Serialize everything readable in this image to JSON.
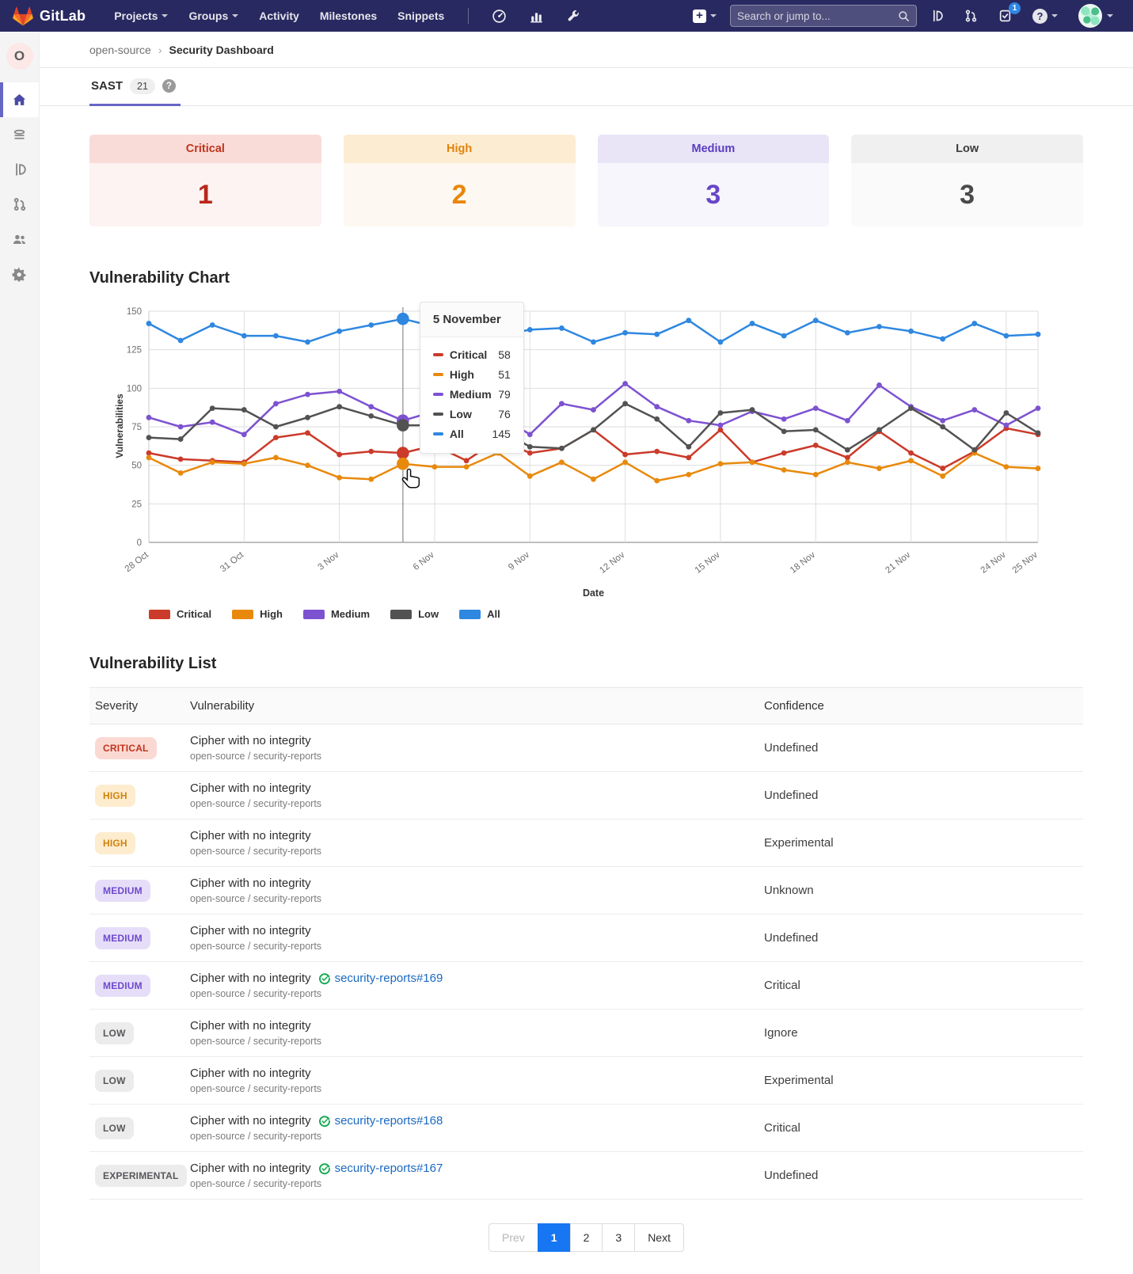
{
  "theme": {
    "navbar_bg": "#292961",
    "tab_underline": "#6666c4",
    "link_color": "#1b69c0",
    "pagination_active_bg": "#1776f2",
    "todo_badge_bg": "#2e87e5",
    "badge_critical_bg": "#fbd9d3",
    "badge_critical_fg": "#c0341d",
    "badge_high_bg": "#fdecce",
    "badge_high_fg": "#d1830c",
    "badge_medium_bg": "#e6def9",
    "badge_medium_fg": "#6e49cb",
    "badge_neutral_bg": "#ececec",
    "badge_neutral_fg": "#57575c",
    "issue_icon_green": "#1aaa55"
  },
  "navbar": {
    "brand": "GitLab",
    "menu": [
      "Projects",
      "Groups",
      "Activity",
      "Milestones",
      "Snippets"
    ],
    "search_placeholder": "Search or jump to...",
    "todo_count": "1",
    "icons": [
      "gitlab-tanuki-logo",
      "dashboard-gauge-icon",
      "chart-icon",
      "wrench-icon",
      "plus-icon",
      "search-icon",
      "issues-icon",
      "merge-request-icon",
      "todo-icon",
      "help-icon",
      "user-avatar"
    ]
  },
  "sidebar": {
    "project_initial": "O",
    "icons": [
      "project-home-icon",
      "repository-icon",
      "issues-icon",
      "merge-request-icon",
      "members-icon",
      "settings-gear-icon"
    ],
    "active_index": 0
  },
  "breadcrumb": {
    "parent": "open-source",
    "current": "Security Dashboard"
  },
  "tab": {
    "label": "SAST",
    "count": "21"
  },
  "severity_cards": [
    {
      "label": "Critical",
      "count": "1",
      "header_bg": "#f9dcd8",
      "body_bg": "#fdf3f2",
      "color": "#c0341d",
      "count_color": "#b8271c"
    },
    {
      "label": "High",
      "count": "2",
      "header_bg": "#fcecd2",
      "body_bg": "#fdf8f1",
      "color": "#e1830b",
      "count_color": "#e8870c"
    },
    {
      "label": "Medium",
      "count": "3",
      "header_bg": "#e9e5f7",
      "body_bg": "#f7f6fc",
      "color": "#5a3cc0",
      "count_color": "#6746c9"
    },
    {
      "label": "Low",
      "count": "3",
      "header_bg": "#f0f0f0",
      "body_bg": "#fafafa",
      "color": "#3d3d3d",
      "count_color": "#4a4a4a"
    }
  ],
  "chart_section_title": "Vulnerability Chart",
  "chart_data": {
    "type": "line",
    "title": "Vulnerability Chart",
    "xlabel": "Date",
    "ylabel": "Vulnerabilities",
    "ylim": [
      0,
      150
    ],
    "yticks": [
      0,
      25,
      50,
      75,
      100,
      125,
      150
    ],
    "grid": true,
    "legend_position": "bottom",
    "x": [
      "28 Oct",
      "29 Oct",
      "30 Oct",
      "31 Oct",
      "1 Nov",
      "2 Nov",
      "3 Nov",
      "4 Nov",
      "5 Nov",
      "6 Nov",
      "7 Nov",
      "8 Nov",
      "9 Nov",
      "10 Nov",
      "11 Nov",
      "12 Nov",
      "13 Nov",
      "14 Nov",
      "15 Nov",
      "16 Nov",
      "17 Nov",
      "18 Nov",
      "19 Nov",
      "20 Nov",
      "21 Nov",
      "22 Nov",
      "23 Nov",
      "24 Nov",
      "25 Nov"
    ],
    "xtick_indices": [
      0,
      3,
      6,
      9,
      12,
      15,
      18,
      21,
      24,
      27,
      28
    ],
    "series": [
      {
        "name": "Critical",
        "color": "#cb3a2a",
        "values": [
          58,
          54,
          53,
          52,
          68,
          71,
          57,
          59,
          58,
          63,
          53,
          67,
          58,
          61,
          73,
          57,
          59,
          55,
          73,
          52,
          58,
          63,
          55,
          72,
          58,
          48,
          59,
          74,
          70
        ]
      },
      {
        "name": "High",
        "color": "#e8890c",
        "values": [
          55,
          45,
          52,
          51,
          55,
          50,
          42,
          41,
          51,
          49,
          49,
          58,
          43,
          52,
          41,
          52,
          40,
          44,
          51,
          52,
          47,
          44,
          52,
          48,
          53,
          43,
          58,
          49,
          48
        ]
      },
      {
        "name": "Medium",
        "color": "#7d52d1",
        "values": [
          81,
          75,
          78,
          70,
          90,
          96,
          98,
          88,
          79,
          85,
          75,
          83,
          70,
          90,
          86,
          103,
          88,
          79,
          76,
          85,
          80,
          87,
          79,
          102,
          88,
          79,
          86,
          76,
          87
        ]
      },
      {
        "name": "Low",
        "color": "#525252",
        "values": [
          68,
          67,
          87,
          86,
          75,
          81,
          88,
          82,
          76,
          76,
          71,
          74,
          62,
          61,
          73,
          90,
          80,
          62,
          84,
          86,
          72,
          73,
          60,
          73,
          87,
          75,
          60,
          84,
          71
        ]
      },
      {
        "name": "All",
        "color": "#2e87e0",
        "values": [
          142,
          131,
          141,
          134,
          134,
          130,
          137,
          141,
          145,
          140,
          133,
          134,
          138,
          139,
          130,
          136,
          135,
          144,
          130,
          142,
          134,
          144,
          136,
          140,
          137,
          132,
          142,
          134,
          135
        ]
      }
    ],
    "tooltip": {
      "index": 8,
      "title": "5 November",
      "values": {
        "Critical": 58,
        "High": 51,
        "Medium": 79,
        "Low": 76,
        "All": 145
      }
    }
  },
  "list_section_title": "Vulnerability List",
  "table": {
    "columns": [
      "Severity",
      "Vulnerability",
      "Confidence"
    ],
    "rows": [
      {
        "severity": "CRITICAL",
        "severity_type": "critical",
        "title": "Cipher with no integrity",
        "project": "open-source / security-reports",
        "link": "",
        "confidence": "Undefined"
      },
      {
        "severity": "HIGH",
        "severity_type": "high",
        "title": "Cipher with no integrity",
        "project": "open-source / security-reports",
        "link": "",
        "confidence": "Undefined"
      },
      {
        "severity": "HIGH",
        "severity_type": "high",
        "title": "Cipher with no integrity",
        "project": "open-source / security-reports",
        "link": "",
        "confidence": "Experimental"
      },
      {
        "severity": "MEDIUM",
        "severity_type": "medium",
        "title": "Cipher with no integrity",
        "project": "open-source / security-reports",
        "link": "",
        "confidence": "Unknown"
      },
      {
        "severity": "MEDIUM",
        "severity_type": "medium",
        "title": "Cipher with no integrity",
        "project": "open-source / security-reports",
        "link": "",
        "confidence": "Undefined"
      },
      {
        "severity": "MEDIUM",
        "severity_type": "medium",
        "title": "Cipher with no integrity",
        "project": "open-source / security-reports",
        "link": "security-reports#169",
        "confidence": "Critical"
      },
      {
        "severity": "LOW",
        "severity_type": "low",
        "title": "Cipher with no integrity",
        "project": "open-source / security-reports",
        "link": "",
        "confidence": "Ignore"
      },
      {
        "severity": "LOW",
        "severity_type": "low",
        "title": "Cipher with no integrity",
        "project": "open-source / security-reports",
        "link": "",
        "confidence": "Experimental"
      },
      {
        "severity": "LOW",
        "severity_type": "low",
        "title": "Cipher with no integrity",
        "project": "open-source / security-reports",
        "link": "security-reports#168",
        "confidence": "Critical"
      },
      {
        "severity": "EXPERIMENTAL",
        "severity_type": "experimental",
        "title": "Cipher with no integrity",
        "project": "open-source / security-reports",
        "link": "security-reports#167",
        "confidence": "Undefined"
      }
    ]
  },
  "pagination": {
    "prev": "Prev",
    "pages": [
      "1",
      "2",
      "3"
    ],
    "active": "1",
    "next": "Next"
  }
}
